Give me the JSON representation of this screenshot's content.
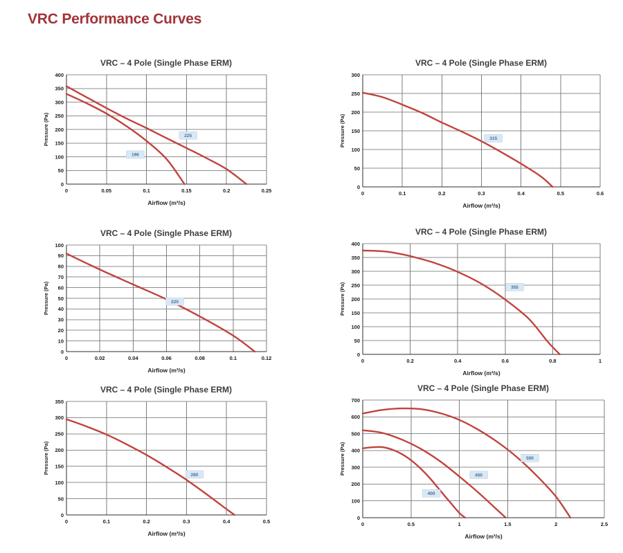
{
  "page": {
    "title": "VRC Performance Curves"
  },
  "style": {
    "title_color": "#a23338",
    "curve_color": "#c0433d",
    "grid_color": "#8e8e8e",
    "vgrid_color": "#7d7d7d",
    "axis_color": "#2b2b2b",
    "tick_color": "#1a1a1a",
    "label_bg": "#d9e8f5",
    "label_border": "#b9cfe3",
    "label_text": "#4a6d96",
    "chart_title_color": "#3d3d3d"
  },
  "chart_data": [
    {
      "type": "line",
      "title": "VRC – 4 Pole (Single Phase ERM)",
      "xlabel": "Airflow (m³/s)",
      "ylabel": "Pressure (Pa)",
      "xlim": [
        0,
        0.25
      ],
      "ylim": [
        0,
        400
      ],
      "grid": true,
      "legend": "none",
      "xticks": [
        0,
        0.05,
        0.1,
        0.15,
        0.2,
        0.25
      ],
      "xtick_labels": [
        "0",
        "0.05",
        "0.1",
        "0.15",
        "0.2",
        "0.25"
      ],
      "yticks": [
        0,
        50,
        100,
        150,
        200,
        250,
        300,
        350,
        400
      ],
      "ytick_labels": [
        "0",
        "50",
        "100",
        "150",
        "200",
        "250",
        "300",
        "350",
        "400"
      ],
      "series": [
        {
          "name": "225",
          "label_pos": [
            0.152,
            178
          ],
          "points": [
            [
              0,
              358
            ],
            [
              0.025,
              318
            ],
            [
              0.05,
              278
            ],
            [
              0.075,
              240
            ],
            [
              0.1,
              205
            ],
            [
              0.125,
              168
            ],
            [
              0.15,
              132
            ],
            [
              0.175,
              95
            ],
            [
              0.2,
              55
            ],
            [
              0.225,
              0
            ]
          ]
        },
        {
          "name": "196",
          "label_pos": [
            0.086,
            108
          ],
          "points": [
            [
              0,
              330
            ],
            [
              0.025,
              296
            ],
            [
              0.05,
              258
            ],
            [
              0.075,
              212
            ],
            [
              0.1,
              158
            ],
            [
              0.125,
              92
            ],
            [
              0.1475,
              0
            ]
          ]
        }
      ]
    },
    {
      "type": "line",
      "title": "VRC – 4 Pole (Single Phase ERM)",
      "xlabel": "Airflow (m³/s)",
      "ylabel": "Pressure (Pa)",
      "xlim": [
        0,
        0.6
      ],
      "ylim": [
        0,
        300
      ],
      "grid": true,
      "legend": "none",
      "xticks": [
        0,
        0.1,
        0.2,
        0.3,
        0.4,
        0.5,
        0.6
      ],
      "xtick_labels": [
        "0",
        "0.1",
        "0.2",
        "0.3",
        "0.4",
        "0.5",
        "0.6"
      ],
      "yticks": [
        0,
        50,
        100,
        150,
        200,
        250,
        300
      ],
      "ytick_labels": [
        "0",
        "50",
        "100",
        "150",
        "200",
        "250",
        "300"
      ],
      "series": [
        {
          "name": "315",
          "label_pos": [
            0.33,
            130
          ],
          "points": [
            [
              0,
              252
            ],
            [
              0.05,
              240
            ],
            [
              0.1,
              220
            ],
            [
              0.15,
              198
            ],
            [
              0.2,
              172
            ],
            [
              0.25,
              148
            ],
            [
              0.3,
              122
            ],
            [
              0.35,
              93
            ],
            [
              0.4,
              62
            ],
            [
              0.45,
              28
            ],
            [
              0.48,
              0
            ]
          ]
        }
      ]
    },
    {
      "type": "line",
      "title": "VRC – 4 Pole (Single Phase ERM)",
      "xlabel": "Airflow (m³/s)",
      "ylabel": "Pressure (Pa)",
      "xlim": [
        0,
        0.12
      ],
      "ylim": [
        0,
        100
      ],
      "grid": true,
      "legend": "none",
      "xticks": [
        0,
        0.02,
        0.04,
        0.06,
        0.08,
        0.1,
        0.12
      ],
      "xtick_labels": [
        "0",
        "0.02",
        "0.04",
        "0.06",
        "0.08",
        "0.1",
        "0.12"
      ],
      "yticks": [
        0,
        10,
        20,
        30,
        40,
        50,
        60,
        70,
        80,
        90,
        100
      ],
      "ytick_labels": [
        "0",
        "10",
        "20",
        "30",
        "40",
        "50",
        "60",
        "70",
        "80",
        "90",
        "100"
      ],
      "series": [
        {
          "name": "220",
          "label_pos": [
            0.065,
            47
          ],
          "points": [
            [
              0,
              92
            ],
            [
              0.02,
              77
            ],
            [
              0.04,
              63
            ],
            [
              0.06,
              49
            ],
            [
              0.08,
              33
            ],
            [
              0.1,
              15
            ],
            [
              0.113,
              0
            ]
          ]
        }
      ]
    },
    {
      "type": "line",
      "title": "VRC – 4 Pole (Single Phase ERM)",
      "xlabel": "Airflow (m³/s)",
      "ylabel": "Pressure (Pa)",
      "xlim": [
        0,
        1
      ],
      "ylim": [
        0,
        400
      ],
      "grid": true,
      "legend": "none",
      "xticks": [
        0,
        0.2,
        0.4,
        0.6,
        0.8,
        1
      ],
      "xtick_labels": [
        "0",
        "0.2",
        "0.4",
        "0.6",
        "0.8",
        "1"
      ],
      "yticks": [
        0,
        50,
        100,
        150,
        200,
        250,
        300,
        350,
        400
      ],
      "ytick_labels": [
        "0",
        "50",
        "100",
        "150",
        "200",
        "250",
        "300",
        "350",
        "400"
      ],
      "series": [
        {
          "name": "355",
          "label_pos": [
            0.64,
            243
          ],
          "points": [
            [
              0,
              375
            ],
            [
              0.05,
              374
            ],
            [
              0.1,
              371
            ],
            [
              0.15,
              364
            ],
            [
              0.2,
              355
            ],
            [
              0.3,
              331
            ],
            [
              0.4,
              298
            ],
            [
              0.5,
              255
            ],
            [
              0.6,
              198
            ],
            [
              0.7,
              128
            ],
            [
              0.78,
              45
            ],
            [
              0.83,
              0
            ]
          ]
        }
      ]
    },
    {
      "type": "line",
      "title": "VRC – 4 Pole (Single Phase ERM)",
      "xlabel": "Airflow (m³/s)",
      "ylabel": "Pressure (Pa)",
      "xlim": [
        0,
        0.5
      ],
      "ylim": [
        0,
        350
      ],
      "grid": true,
      "legend": "none",
      "xticks": [
        0,
        0.1,
        0.2,
        0.3,
        0.4,
        0.5
      ],
      "xtick_labels": [
        "0",
        "0.1",
        "0.2",
        "0.3",
        "0.4",
        "0.5"
      ],
      "yticks": [
        0,
        50,
        100,
        150,
        200,
        250,
        300,
        350
      ],
      "ytick_labels": [
        "0",
        "50",
        "100",
        "150",
        "200",
        "250",
        "300",
        "350"
      ],
      "series": [
        {
          "name": "280",
          "label_pos": [
            0.32,
            125
          ],
          "points": [
            [
              0,
              295
            ],
            [
              0.05,
              273
            ],
            [
              0.1,
              248
            ],
            [
              0.15,
              218
            ],
            [
              0.2,
              185
            ],
            [
              0.25,
              148
            ],
            [
              0.3,
              108
            ],
            [
              0.35,
              64
            ],
            [
              0.4,
              18
            ],
            [
              0.42,
              0
            ]
          ]
        }
      ]
    },
    {
      "type": "line",
      "title": "VRC – 4 Pole (Single Phase ERM)",
      "xlabel": "Airflow (m³/s)",
      "ylabel": "Pressure (Pa)",
      "xlim": [
        0,
        2.5
      ],
      "ylim": [
        0,
        700
      ],
      "grid": true,
      "legend": "none",
      "xticks": [
        0,
        0.5,
        1,
        1.5,
        2,
        2.5
      ],
      "xtick_labels": [
        "0",
        "0.5",
        "1",
        "1.5",
        "2",
        "2.5"
      ],
      "yticks": [
        0,
        100,
        200,
        300,
        400,
        500,
        600,
        700
      ],
      "ytick_labels": [
        "0",
        "100",
        "200",
        "300",
        "400",
        "500",
        "600",
        "700"
      ],
      "series": [
        {
          "name": "500",
          "label_pos": [
            1.73,
            355
          ],
          "points": [
            [
              0,
              620
            ],
            [
              0.2,
              641
            ],
            [
              0.4,
              650
            ],
            [
              0.6,
              646
            ],
            [
              0.8,
              622
            ],
            [
              1.0,
              582
            ],
            [
              1.2,
              522
            ],
            [
              1.4,
              448
            ],
            [
              1.6,
              358
            ],
            [
              1.8,
              250
            ],
            [
              2.0,
              125
            ],
            [
              2.15,
              0
            ]
          ]
        },
        {
          "name": "450",
          "label_pos": [
            1.2,
            255
          ],
          "points": [
            [
              0,
              520
            ],
            [
              0.2,
              505
            ],
            [
              0.4,
              466
            ],
            [
              0.6,
              410
            ],
            [
              0.8,
              336
            ],
            [
              1.0,
              245
            ],
            [
              1.2,
              148
            ],
            [
              1.4,
              42
            ],
            [
              1.48,
              0
            ]
          ]
        },
        {
          "name": "400",
          "label_pos": [
            0.71,
            145
          ],
          "points": [
            [
              0,
              413
            ],
            [
              0.1,
              419
            ],
            [
              0.2,
              420
            ],
            [
              0.3,
              406
            ],
            [
              0.4,
              380
            ],
            [
              0.5,
              342
            ],
            [
              0.6,
              292
            ],
            [
              0.7,
              232
            ],
            [
              0.8,
              163
            ],
            [
              0.9,
              95
            ],
            [
              1.0,
              28
            ],
            [
              1.06,
              0
            ]
          ]
        }
      ]
    }
  ]
}
